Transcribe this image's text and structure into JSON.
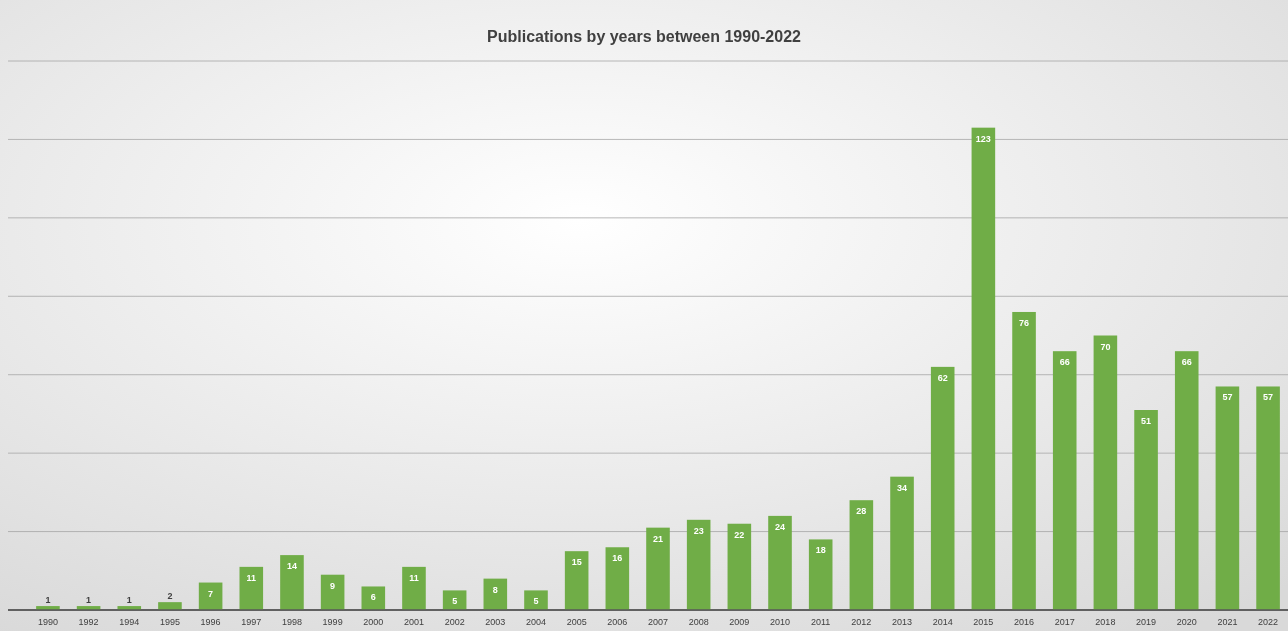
{
  "chart_data": {
    "type": "bar",
    "title": "Publications by years between 1990-2022",
    "categories": [
      "1990",
      "1992",
      "1994",
      "1995",
      "1996",
      "1997",
      "1998",
      "1999",
      "2000",
      "2001",
      "2002",
      "2003",
      "2004",
      "2005",
      "2006",
      "2007",
      "2008",
      "2009",
      "2010",
      "2011",
      "2012",
      "2013",
      "2014",
      "2015",
      "2016",
      "2017",
      "2018",
      "2019",
      "2020",
      "2021",
      "2022"
    ],
    "values": [
      1,
      1,
      1,
      2,
      7,
      11,
      14,
      9,
      6,
      11,
      5,
      8,
      5,
      15,
      16,
      21,
      23,
      22,
      24,
      18,
      28,
      34,
      62,
      123,
      76,
      66,
      70,
      51,
      66,
      57,
      57
    ],
    "color": "#70ad47",
    "ylim": [
      0,
      140
    ],
    "yticks": [
      {
        "value": 0,
        "label": null
      },
      {
        "value": 20,
        "label": null
      },
      {
        "value": 40,
        "label": null
      },
      {
        "value": 60,
        "label": null
      },
      {
        "value": 80,
        "label": null
      },
      {
        "value": 100,
        "label": null
      },
      {
        "value": 120,
        "label": null
      },
      {
        "value": 140,
        "label": null
      }
    ],
    "tick_labels": "x",
    "grid": "y",
    "data_labels": true
  }
}
